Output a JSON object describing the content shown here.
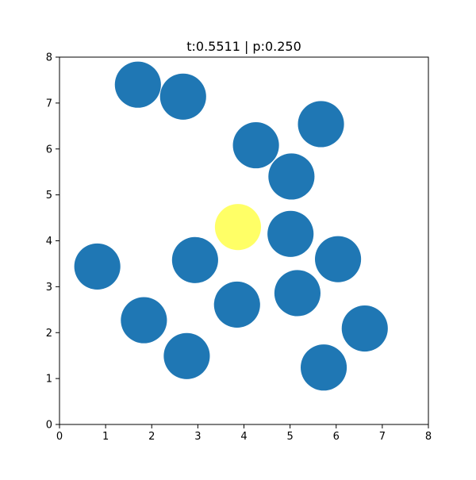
{
  "chart_data": {
    "type": "scatter",
    "title": "t:0.5511 | p:0.250",
    "xlabel": "",
    "ylabel": "",
    "xlim": [
      0,
      8
    ],
    "ylim": [
      0,
      8
    ],
    "x_ticks": [
      "0",
      "1",
      "2",
      "3",
      "4",
      "5",
      "6",
      "7",
      "8"
    ],
    "y_ticks": [
      "0",
      "1",
      "2",
      "3",
      "4",
      "5",
      "6",
      "7",
      "8"
    ],
    "grid": false,
    "marker_radius_data_units": 0.5,
    "points": [
      {
        "x": 1.7,
        "y": 7.4,
        "color": "#1f77b4"
      },
      {
        "x": 2.68,
        "y": 7.14,
        "color": "#1f77b4"
      },
      {
        "x": 5.67,
        "y": 6.54,
        "color": "#1f77b4"
      },
      {
        "x": 4.26,
        "y": 6.08,
        "color": "#1f77b4"
      },
      {
        "x": 5.03,
        "y": 5.4,
        "color": "#1f77b4"
      },
      {
        "x": 3.87,
        "y": 4.3,
        "color": "#ffff66"
      },
      {
        "x": 5.01,
        "y": 4.15,
        "color": "#1f77b4"
      },
      {
        "x": 6.04,
        "y": 3.6,
        "color": "#1f77b4"
      },
      {
        "x": 2.94,
        "y": 3.58,
        "color": "#1f77b4"
      },
      {
        "x": 0.82,
        "y": 3.44,
        "color": "#1f77b4"
      },
      {
        "x": 5.16,
        "y": 2.86,
        "color": "#1f77b4"
      },
      {
        "x": 3.85,
        "y": 2.61,
        "color": "#1f77b4"
      },
      {
        "x": 1.83,
        "y": 2.27,
        "color": "#1f77b4"
      },
      {
        "x": 6.62,
        "y": 2.09,
        "color": "#1f77b4"
      },
      {
        "x": 2.76,
        "y": 1.49,
        "color": "#1f77b4"
      },
      {
        "x": 5.73,
        "y": 1.24,
        "color": "#1f77b4"
      }
    ]
  }
}
